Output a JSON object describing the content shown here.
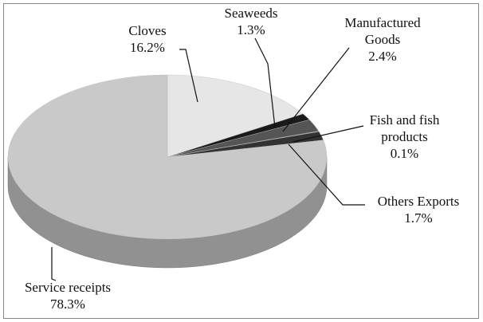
{
  "chart_data": {
    "type": "pie",
    "categories": [
      "Cloves",
      "Seaweeds",
      "Manufactured Goods",
      "Fish and fish products",
      "Others Exports",
      "Service receipts"
    ],
    "values": [
      16.2,
      1.3,
      2.4,
      0.1,
      1.7,
      78.3
    ],
    "value_labels": [
      "16.2%",
      "1.3%",
      "2.4%",
      "0.1%",
      "1.7%",
      "78.3%"
    ],
    "colors": [
      "#e6e6e6",
      "#1a1a1a",
      "#555555",
      "#8a8a8a",
      "#333333",
      "#c9c9c9"
    ]
  }
}
